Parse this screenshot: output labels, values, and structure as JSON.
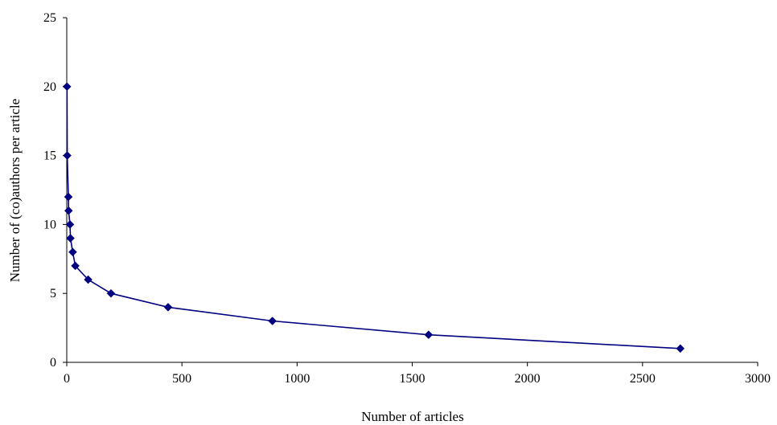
{
  "chart_data": {
    "type": "line",
    "title": "",
    "xlabel": "Number of articles",
    "ylabel": "Number of (co)authors per article",
    "xlim": [
      0,
      3000
    ],
    "ylim": [
      0,
      25
    ],
    "x_ticks": [
      "0",
      "500",
      "1000",
      "1500",
      "2000",
      "2500",
      "3000"
    ],
    "y_ticks": [
      "0",
      "5",
      "10",
      "15",
      "20",
      "25"
    ],
    "grid": false,
    "legend": "none",
    "marker": "diamond",
    "color": "#000080",
    "series": [
      {
        "points": [
          {
            "x": 1,
            "y": 20
          },
          {
            "x": 2,
            "y": 15
          },
          {
            "x": 7,
            "y": 12
          },
          {
            "x": 8,
            "y": 11
          },
          {
            "x": 14,
            "y": 10
          },
          {
            "x": 16,
            "y": 9
          },
          {
            "x": 26,
            "y": 8
          },
          {
            "x": 37,
            "y": 7
          },
          {
            "x": 93,
            "y": 6
          },
          {
            "x": 192,
            "y": 5
          },
          {
            "x": 440,
            "y": 4
          },
          {
            "x": 893,
            "y": 3
          },
          {
            "x": 1571,
            "y": 2
          },
          {
            "x": 2664,
            "y": 1
          }
        ]
      }
    ]
  }
}
